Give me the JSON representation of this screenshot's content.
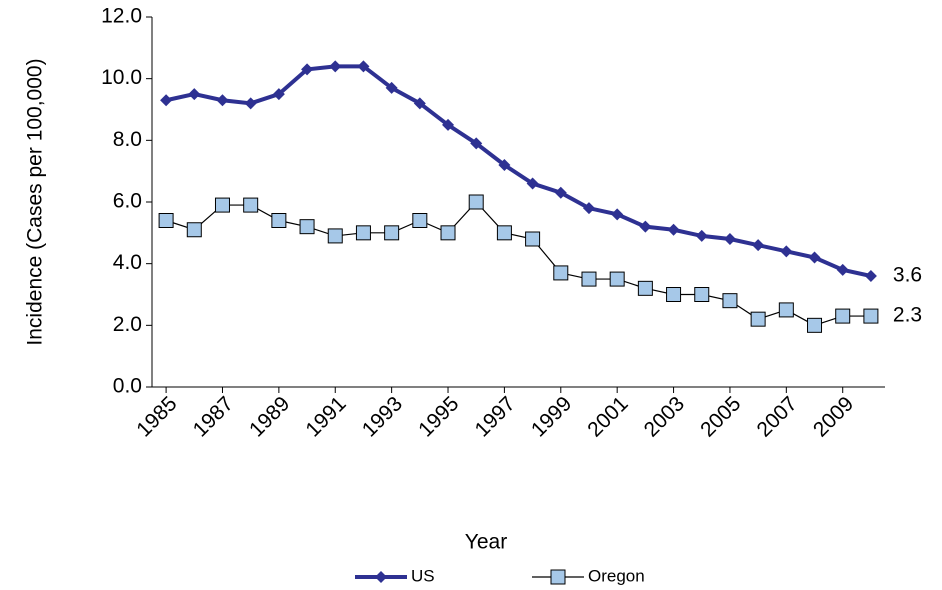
{
  "chart_data": {
    "type": "line",
    "x_label": "Year",
    "y_label": "Incidence (Cases per 100,000)",
    "x": [
      1985,
      1986,
      1987,
      1988,
      1989,
      1990,
      1991,
      1992,
      1993,
      1994,
      1995,
      1996,
      1997,
      1998,
      1999,
      2000,
      2001,
      2002,
      2003,
      2004,
      2005,
      2006,
      2007,
      2008,
      2009,
      2010
    ],
    "xlim": [
      1984.5,
      2010.5
    ],
    "xticks": [
      1985,
      1987,
      1989,
      1991,
      1993,
      1995,
      1997,
      1999,
      2001,
      2003,
      2005,
      2007,
      2009
    ],
    "ylim": [
      0,
      12
    ],
    "yticks": [
      {
        "value": 0,
        "label": "0.0"
      },
      {
        "value": 2,
        "label": "2.0"
      },
      {
        "value": 4,
        "label": "4.0"
      },
      {
        "value": 6,
        "label": "6.0"
      },
      {
        "value": 8,
        "label": "8.0"
      },
      {
        "value": 10,
        "label": "10.0"
      },
      {
        "value": 12,
        "label": "12.0"
      }
    ],
    "grid": false,
    "legend": "bottom",
    "end_labels": true,
    "series": [
      {
        "name": "US",
        "color": "#2e3192",
        "marker": "diamond",
        "values": [
          9.3,
          9.5,
          9.3,
          9.2,
          9.5,
          10.3,
          10.4,
          10.4,
          9.7,
          9.2,
          8.5,
          7.9,
          7.2,
          6.6,
          6.3,
          5.8,
          5.6,
          5.2,
          5.1,
          4.9,
          4.8,
          4.6,
          4.4,
          4.2,
          3.8,
          3.6
        ]
      },
      {
        "name": "Oregon",
        "color": "#000000",
        "marker": "square",
        "marker_color": "#a6c8e8",
        "values": [
          5.4,
          5.1,
          5.9,
          5.9,
          5.4,
          5.2,
          4.9,
          5.0,
          5.0,
          5.4,
          5.0,
          6.0,
          5.0,
          4.8,
          3.7,
          3.5,
          3.5,
          3.2,
          3.0,
          3.0,
          2.8,
          2.2,
          2.5,
          2.0,
          2.3,
          2.3
        ]
      }
    ]
  }
}
